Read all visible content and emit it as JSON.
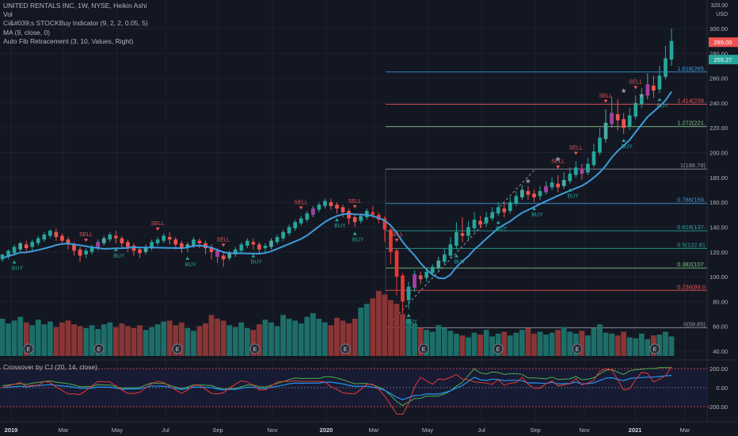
{
  "legend": {
    "title": "UNITED RENTALS INC, 1W, NYSE, Heikin Ashi",
    "items": [
      "Vol",
      "Ci&#039;s STOCKBuy Indicator (9, 2, 2, 0.05, 5)",
      "MA (9, close, 0)",
      "Auto Fib Retracement (3, 10, Values, Right)"
    ]
  },
  "oscillator_label": "Crossover by CJ (20, 14, close)",
  "currency": "USD",
  "colors": {
    "bg": "#131722",
    "up": "#26a69a",
    "down": "#ef5350",
    "up_mid": "#4fa9a0",
    "down_mid": "#a93e3e",
    "ma": "#3d9cdb",
    "vol_up": "#1d6e68",
    "vol_down": "#8a3535",
    "buy": "#26a69a",
    "sell": "#ef5350",
    "purple": "#a040a0",
    "star": "#9598a1"
  },
  "chart_data": {
    "type": "candlestick",
    "title": "UNITED RENTALS INC, 1W, NYSE, Heikin Ashi",
    "y_axis": {
      "ticks": [
        300,
        280,
        260,
        240,
        220,
        200,
        180,
        160,
        140,
        120,
        100,
        80,
        60,
        40
      ],
      "top_label": "320.00",
      "range": [
        34,
        318
      ]
    },
    "x_axis": {
      "labels": [
        "2019",
        "Mar",
        "May",
        "Jul",
        "Sep",
        "Nov",
        "2020",
        "Mar",
        "May",
        "Jul",
        "Sep",
        "Nov",
        "2021",
        "Mar"
      ]
    },
    "last_price": "289.00",
    "secondary_price": "255.27",
    "fib_levels": [
      {
        "label": "1.618(265.",
        "value": 265,
        "color": "#3d9cdb"
      },
      {
        "label": "1.414(239.",
        "value": 239,
        "color": "#ef5350"
      },
      {
        "label": "1.272(221.",
        "value": 221,
        "color": "#81c784"
      },
      {
        "label": "1(186.78)",
        "value": 186.78,
        "color": "#9598a1"
      },
      {
        "label": "0.786(159.",
        "value": 159,
        "color": "#3d9cdb"
      },
      {
        "label": "0.618(137.",
        "value": 137,
        "color": "#26a69a"
      },
      {
        "label": "0.5(122.81",
        "value": 122.81,
        "color": "#26a69a"
      },
      {
        "label": "0.382(107.",
        "value": 107,
        "color": "#81c784"
      },
      {
        "label": "0.236(89.0",
        "value": 89,
        "color": "#ef5350"
      },
      {
        "label": "0(58.85)",
        "value": 58.85,
        "color": "#9598a1"
      }
    ],
    "signals": {
      "buy_text": "BUY",
      "sell_text": "SELL",
      "earnings_text": "E"
    },
    "oscillator": {
      "ticks": [
        "200.00",
        "0.00",
        "-200.00"
      ],
      "values": [
        200,
        0,
        -200
      ]
    },
    "candles": [
      [
        114,
        118,
        118,
        112
      ],
      [
        116,
        121,
        122,
        114
      ],
      [
        119,
        124,
        126,
        117
      ],
      [
        122,
        127,
        128,
        120
      ],
      [
        126,
        123,
        129,
        120
      ],
      [
        124,
        128,
        130,
        121
      ],
      [
        127,
        131,
        133,
        125
      ],
      [
        130,
        134,
        136,
        128
      ],
      [
        133,
        137,
        138,
        131
      ],
      [
        136,
        132,
        139,
        129
      ],
      [
        133,
        129,
        135,
        126
      ],
      [
        130,
        126,
        132,
        122
      ],
      [
        126,
        121,
        128,
        117
      ],
      [
        122,
        117,
        124,
        112
      ],
      [
        118,
        121,
        123,
        115
      ],
      [
        120,
        124,
        126,
        118
      ],
      [
        123,
        128,
        130,
        121
      ],
      [
        127,
        131,
        133,
        125
      ],
      [
        130,
        134,
        136,
        128
      ],
      [
        133,
        131,
        137,
        127
      ],
      [
        131,
        127,
        133,
        123
      ],
      [
        128,
        124,
        130,
        120
      ],
      [
        125,
        121,
        127,
        117
      ],
      [
        122,
        119,
        124,
        115
      ],
      [
        120,
        124,
        126,
        118
      ],
      [
        123,
        128,
        130,
        121
      ],
      [
        127,
        130,
        132,
        125
      ],
      [
        129,
        133,
        135,
        127
      ],
      [
        132,
        130,
        136,
        126
      ],
      [
        130,
        126,
        132,
        122
      ],
      [
        127,
        123,
        129,
        119
      ],
      [
        124,
        126,
        128,
        120
      ],
      [
        125,
        130,
        132,
        123
      ],
      [
        129,
        127,
        131,
        123
      ],
      [
        127,
        123,
        129,
        118
      ],
      [
        124,
        120,
        126,
        114
      ],
      [
        121,
        116,
        123,
        111
      ],
      [
        117,
        114,
        119,
        108
      ],
      [
        115,
        119,
        121,
        113
      ],
      [
        118,
        122,
        124,
        116
      ],
      [
        121,
        126,
        128,
        119
      ],
      [
        125,
        129,
        131,
        123
      ],
      [
        128,
        126,
        131,
        122
      ],
      [
        126,
        122,
        128,
        118
      ],
      [
        123,
        125,
        127,
        119
      ],
      [
        124,
        129,
        131,
        122
      ],
      [
        128,
        132,
        134,
        126
      ],
      [
        131,
        136,
        138,
        129
      ],
      [
        135,
        140,
        142,
        133
      ],
      [
        139,
        144,
        146,
        137
      ],
      [
        143,
        147,
        149,
        141
      ],
      [
        146,
        151,
        153,
        144
      ],
      [
        150,
        155,
        157,
        148
      ],
      [
        154,
        158,
        160,
        152
      ],
      [
        157,
        161,
        163,
        155
      ],
      [
        160,
        157,
        163,
        154
      ],
      [
        158,
        155,
        160,
        151
      ],
      [
        156,
        152,
        158,
        148
      ],
      [
        153,
        147,
        155,
        142
      ],
      [
        148,
        144,
        150,
        140
      ],
      [
        145,
        149,
        151,
        143
      ],
      [
        148,
        153,
        155,
        146
      ],
      [
        152,
        150,
        157,
        147
      ],
      [
        150,
        146,
        152,
        143
      ],
      [
        147,
        138,
        149,
        128
      ],
      [
        138,
        120,
        140,
        110
      ],
      [
        121,
        100,
        123,
        85
      ],
      [
        101,
        80,
        103,
        70
      ],
      [
        81,
        92,
        96,
        74
      ],
      [
        91,
        102,
        105,
        88
      ],
      [
        101,
        98,
        104,
        94
      ],
      [
        99,
        104,
        106,
        96
      ],
      [
        103,
        108,
        110,
        101
      ],
      [
        107,
        113,
        116,
        105
      ],
      [
        112,
        118,
        123,
        110
      ],
      [
        117,
        126,
        132,
        115
      ],
      [
        125,
        136,
        144,
        122
      ],
      [
        135,
        133,
        148,
        128
      ],
      [
        133,
        140,
        145,
        130
      ],
      [
        139,
        146,
        152,
        136
      ],
      [
        145,
        142,
        149,
        139
      ],
      [
        143,
        148,
        152,
        140
      ],
      [
        147,
        152,
        156,
        145
      ],
      [
        151,
        156,
        160,
        149
      ],
      [
        155,
        152,
        160,
        148
      ],
      [
        153,
        160,
        164,
        151
      ],
      [
        159,
        165,
        169,
        157
      ],
      [
        164,
        170,
        174,
        162
      ],
      [
        169,
        166,
        173,
        162
      ],
      [
        167,
        164,
        170,
        160
      ],
      [
        165,
        169,
        173,
        162
      ],
      [
        168,
        173,
        177,
        166
      ],
      [
        172,
        176,
        180,
        170
      ],
      [
        175,
        172,
        182,
        168
      ],
      [
        173,
        178,
        184,
        171
      ],
      [
        177,
        183,
        188,
        175
      ],
      [
        182,
        188,
        193,
        180
      ],
      [
        187,
        183,
        191,
        178
      ],
      [
        184,
        191,
        196,
        182
      ],
      [
        190,
        201,
        207,
        188
      ],
      [
        200,
        212,
        220,
        198
      ],
      [
        211,
        224,
        235,
        208
      ],
      [
        223,
        232,
        245,
        220
      ],
      [
        231,
        226,
        243,
        218
      ],
      [
        227,
        220,
        232,
        215
      ],
      [
        221,
        230,
        236,
        218
      ],
      [
        229,
        240,
        246,
        227
      ],
      [
        239,
        247,
        252,
        236
      ],
      [
        246,
        255,
        264,
        243
      ],
      [
        254,
        250,
        262,
        244
      ],
      [
        251,
        262,
        270,
        248
      ],
      [
        261,
        276,
        286,
        259
      ],
      [
        275,
        290,
        300,
        270
      ]
    ],
    "volume": [
      40,
      35,
      38,
      42,
      36,
      33,
      39,
      34,
      37,
      31,
      36,
      38,
      34,
      32,
      30,
      33,
      29,
      34,
      36,
      31,
      35,
      32,
      30,
      33,
      28,
      31,
      34,
      37,
      38,
      33,
      36,
      30,
      27,
      32,
      35,
      44,
      40,
      38,
      33,
      31,
      36,
      30,
      28,
      34,
      39,
      36,
      32,
      44,
      40,
      38,
      35,
      42,
      46,
      40,
      36,
      33,
      41,
      38,
      35,
      40,
      52,
      56,
      62,
      70,
      66,
      60,
      56,
      45,
      40,
      35,
      30,
      28,
      26,
      33,
      30,
      27,
      24,
      22,
      20,
      25,
      23,
      28,
      21,
      24,
      26,
      22,
      25,
      28,
      30,
      24,
      26,
      23,
      25,
      28,
      31,
      26,
      24,
      27,
      22,
      30,
      34,
      25,
      24,
      22,
      26,
      20,
      19,
      24,
      18,
      22,
      23,
      26,
      21
    ]
  }
}
